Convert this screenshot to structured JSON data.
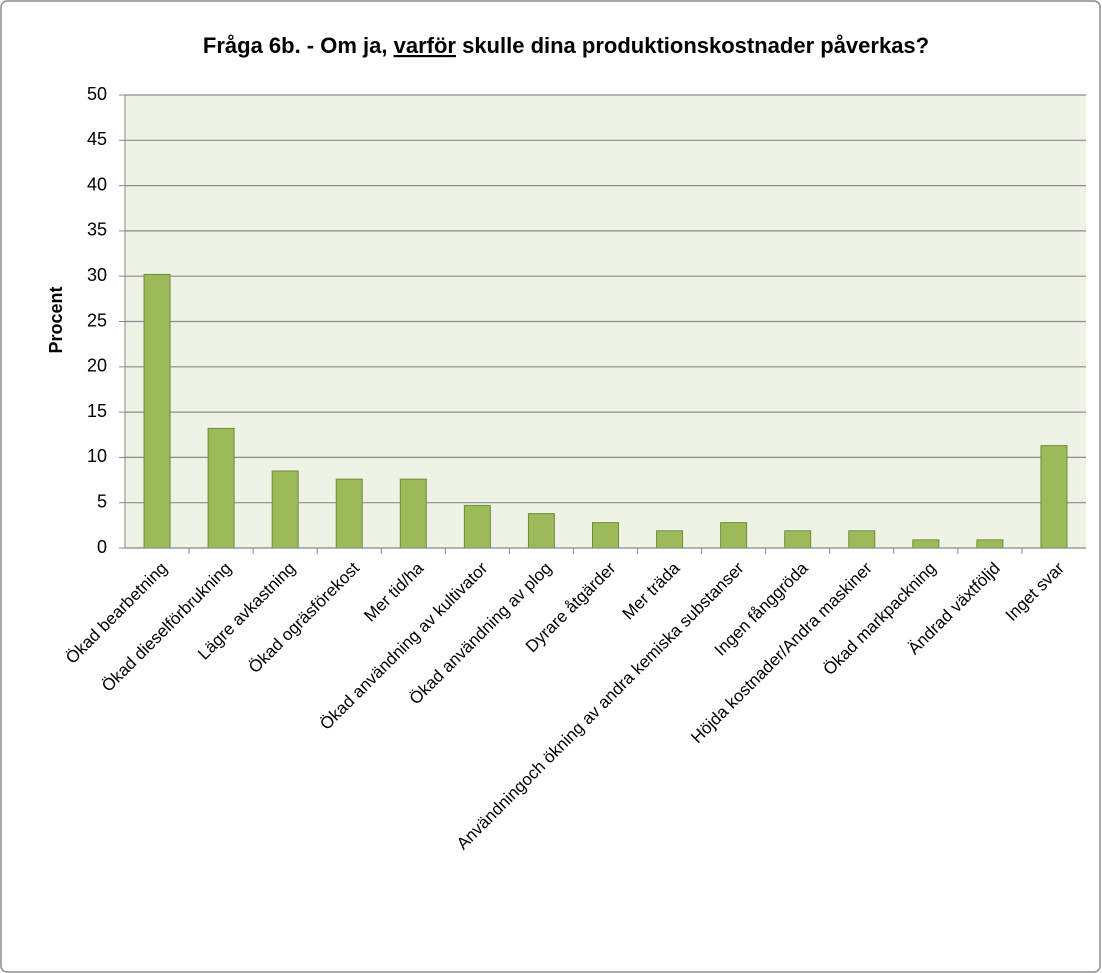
{
  "chart_data": {
    "type": "bar",
    "title": [
      {
        "text": "Fråga 6b. - Om ja, ",
        "underline": false
      },
      {
        "text": "varför",
        "underline": true
      },
      {
        "text": " skulle dina produktionskostnader påverkas?",
        "underline": false
      }
    ],
    "ylabel": "Procent",
    "categories": [
      "Ökad bearbetning",
      "Ökad dieselförbrukning",
      "Lägre avkastning",
      "Ökad ogräsförekost",
      "Mer tid/ha",
      "Ökad användning av kultivator",
      "Ökad användning av plog",
      "Dyrare åtgärder",
      "Mer träda",
      "Användningoch ökning av andra kemiska substanser",
      "Ingen fånggröda",
      "Höjda kostnader/Andra maskiner",
      "Ökad markpackning",
      "Ändrad växtföljd",
      "Inget svar"
    ],
    "values": [
      30.2,
      13.2,
      8.5,
      7.6,
      7.6,
      4.7,
      3.8,
      2.8,
      1.9,
      2.8,
      1.9,
      1.9,
      0.9,
      0.9,
      11.3
    ],
    "color": "#9bbb59",
    "ylim": [
      0,
      50
    ],
    "yticks": [
      0,
      5,
      10,
      15,
      20,
      25,
      30,
      35,
      40,
      45,
      50
    ],
    "grid": true
  }
}
